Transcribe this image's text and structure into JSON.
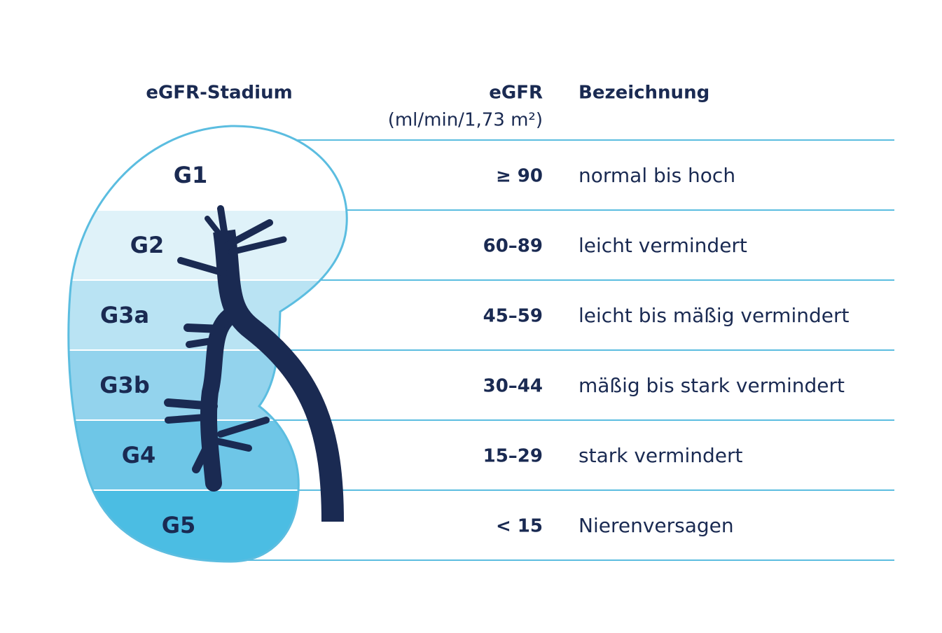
{
  "header": {
    "stage": "eGFR-Stadium",
    "egfr": "eGFR",
    "unit": "(ml/min/1,73 m²)",
    "description": "Bezeichnung"
  },
  "rows": [
    {
      "stage": "G1",
      "egfr": "≥ 90",
      "description": "normal bis hoch"
    },
    {
      "stage": "G2",
      "egfr": "60–89",
      "description": "leicht vermindert"
    },
    {
      "stage": "G3a",
      "egfr": "45–59",
      "description": "leicht bis mäßig vermindert"
    },
    {
      "stage": "G3b",
      "egfr": "30–44",
      "description": "mäßig bis stark vermindert"
    },
    {
      "stage": "G4",
      "egfr": "15–29",
      "description": "stark vermindert"
    },
    {
      "stage": "G5",
      "egfr": "< 15",
      "description": "Nierenversagen"
    }
  ]
}
